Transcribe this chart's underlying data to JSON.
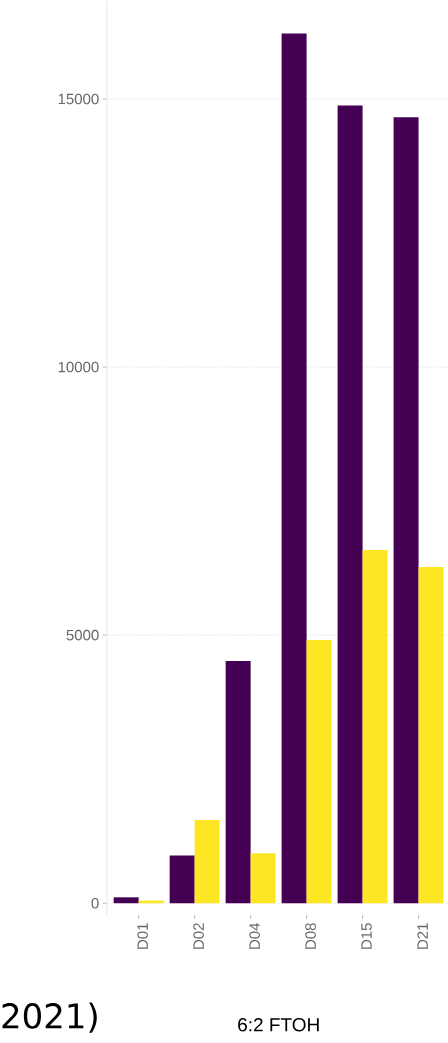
{
  "chart_data": {
    "type": "bar",
    "xlabel": "6:2 FTOH",
    "categories": [
      "D01",
      "D02",
      "D04",
      "D08",
      "D15",
      "D21"
    ],
    "series": [
      {
        "color": "#440154",
        "values": [
          110,
          890,
          4520,
          16220,
          14880,
          14660
        ]
      },
      {
        "color": "#fde725",
        "values": [
          50,
          1550,
          930,
          4910,
          6590,
          6270
        ]
      }
    ],
    "ylim": [
      -220,
      16840
    ],
    "yticks": [
      0,
      5000,
      10000,
      15000
    ],
    "grid": "y",
    "annotations": [
      "2021)"
    ]
  }
}
